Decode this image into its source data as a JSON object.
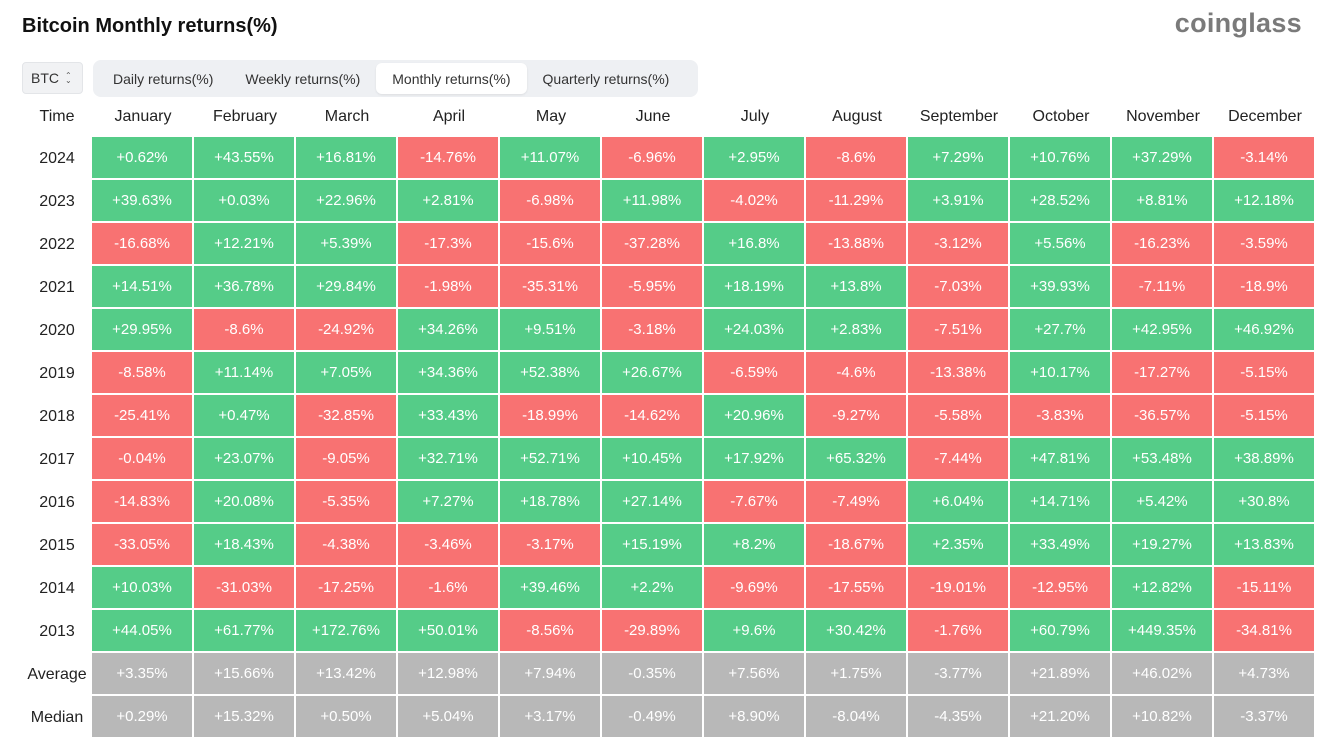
{
  "header": {
    "title": "Bitcoin Monthly returns(%)",
    "brand": "coinglass"
  },
  "coin_select": {
    "value": "BTC"
  },
  "tabs": [
    {
      "label": "Daily returns(%)",
      "active": false
    },
    {
      "label": "Weekly returns(%)",
      "active": false
    },
    {
      "label": "Monthly returns(%)",
      "active": true
    },
    {
      "label": "Quarterly returns(%)",
      "active": false
    }
  ],
  "colors": {
    "positive": "#55cc88",
    "negative": "#f87272",
    "summary": "#b8b8b8"
  },
  "table": {
    "columns": [
      "Time",
      "January",
      "February",
      "March",
      "April",
      "May",
      "June",
      "July",
      "August",
      "September",
      "October",
      "November",
      "December"
    ],
    "rows": [
      {
        "label": "2024",
        "kind": "year",
        "values": [
          "+0.62%",
          "+43.55%",
          "+16.81%",
          "-14.76%",
          "+11.07%",
          "-6.96%",
          "+2.95%",
          "-8.6%",
          "+7.29%",
          "+10.76%",
          "+37.29%",
          "-3.14%"
        ]
      },
      {
        "label": "2023",
        "kind": "year",
        "values": [
          "+39.63%",
          "+0.03%",
          "+22.96%",
          "+2.81%",
          "-6.98%",
          "+11.98%",
          "-4.02%",
          "-11.29%",
          "+3.91%",
          "+28.52%",
          "+8.81%",
          "+12.18%"
        ]
      },
      {
        "label": "2022",
        "kind": "year",
        "values": [
          "-16.68%",
          "+12.21%",
          "+5.39%",
          "-17.3%",
          "-15.6%",
          "-37.28%",
          "+16.8%",
          "-13.88%",
          "-3.12%",
          "+5.56%",
          "-16.23%",
          "-3.59%"
        ]
      },
      {
        "label": "2021",
        "kind": "year",
        "values": [
          "+14.51%",
          "+36.78%",
          "+29.84%",
          "-1.98%",
          "-35.31%",
          "-5.95%",
          "+18.19%",
          "+13.8%",
          "-7.03%",
          "+39.93%",
          "-7.11%",
          "-18.9%"
        ]
      },
      {
        "label": "2020",
        "kind": "year",
        "values": [
          "+29.95%",
          "-8.6%",
          "-24.92%",
          "+34.26%",
          "+9.51%",
          "-3.18%",
          "+24.03%",
          "+2.83%",
          "-7.51%",
          "+27.7%",
          "+42.95%",
          "+46.92%"
        ]
      },
      {
        "label": "2019",
        "kind": "year",
        "values": [
          "-8.58%",
          "+11.14%",
          "+7.05%",
          "+34.36%",
          "+52.38%",
          "+26.67%",
          "-6.59%",
          "-4.6%",
          "-13.38%",
          "+10.17%",
          "-17.27%",
          "-5.15%"
        ]
      },
      {
        "label": "2018",
        "kind": "year",
        "values": [
          "-25.41%",
          "+0.47%",
          "-32.85%",
          "+33.43%",
          "-18.99%",
          "-14.62%",
          "+20.96%",
          "-9.27%",
          "-5.58%",
          "-3.83%",
          "-36.57%",
          "-5.15%"
        ]
      },
      {
        "label": "2017",
        "kind": "year",
        "values": [
          "-0.04%",
          "+23.07%",
          "-9.05%",
          "+32.71%",
          "+52.71%",
          "+10.45%",
          "+17.92%",
          "+65.32%",
          "-7.44%",
          "+47.81%",
          "+53.48%",
          "+38.89%"
        ]
      },
      {
        "label": "2016",
        "kind": "year",
        "values": [
          "-14.83%",
          "+20.08%",
          "-5.35%",
          "+7.27%",
          "+18.78%",
          "+27.14%",
          "-7.67%",
          "-7.49%",
          "+6.04%",
          "+14.71%",
          "+5.42%",
          "+30.8%"
        ]
      },
      {
        "label": "2015",
        "kind": "year",
        "values": [
          "-33.05%",
          "+18.43%",
          "-4.38%",
          "-3.46%",
          "-3.17%",
          "+15.19%",
          "+8.2%",
          "-18.67%",
          "+2.35%",
          "+33.49%",
          "+19.27%",
          "+13.83%"
        ]
      },
      {
        "label": "2014",
        "kind": "year",
        "values": [
          "+10.03%",
          "-31.03%",
          "-17.25%",
          "-1.6%",
          "+39.46%",
          "+2.2%",
          "-9.69%",
          "-17.55%",
          "-19.01%",
          "-12.95%",
          "+12.82%",
          "-15.11%"
        ]
      },
      {
        "label": "2013",
        "kind": "year",
        "values": [
          "+44.05%",
          "+61.77%",
          "+172.76%",
          "+50.01%",
          "-8.56%",
          "-29.89%",
          "+9.6%",
          "+30.42%",
          "-1.76%",
          "+60.79%",
          "+449.35%",
          "-34.81%"
        ]
      },
      {
        "label": "Average",
        "kind": "summary",
        "values": [
          "+3.35%",
          "+15.66%",
          "+13.42%",
          "+12.98%",
          "+7.94%",
          "-0.35%",
          "+7.56%",
          "+1.75%",
          "-3.77%",
          "+21.89%",
          "+46.02%",
          "+4.73%"
        ]
      },
      {
        "label": "Median",
        "kind": "summary",
        "values": [
          "+0.29%",
          "+15.32%",
          "+0.50%",
          "+5.04%",
          "+3.17%",
          "-0.49%",
          "+8.90%",
          "-8.04%",
          "-4.35%",
          "+21.20%",
          "+10.82%",
          "-3.37%"
        ]
      }
    ]
  }
}
